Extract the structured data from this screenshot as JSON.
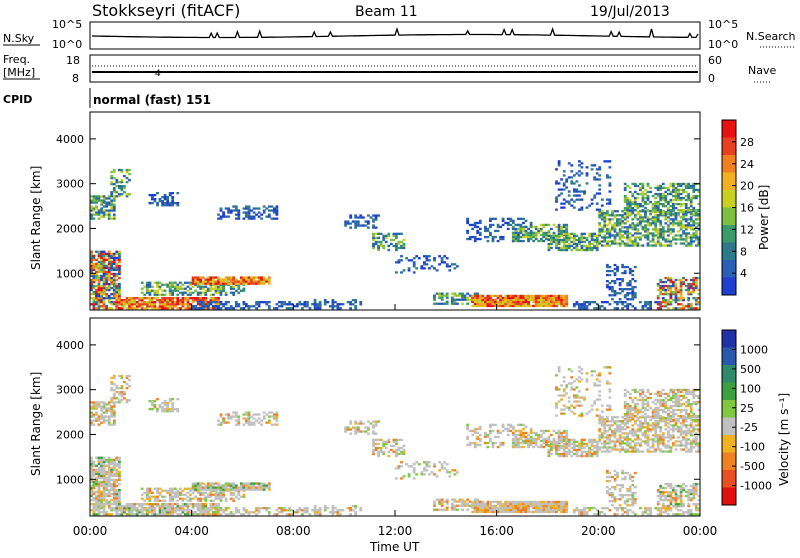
{
  "header": {
    "station": "Stokkseyri (fitACF)",
    "beam": "Beam 11",
    "date": "19/Jul/2013"
  },
  "top_panels": {
    "nsky_label": "N.Sky",
    "nsky_ticks": [
      "10^5",
      "10^0"
    ],
    "nsearch_ticks": [
      "10^5",
      "10^0"
    ],
    "nsearch_label": "N.Search",
    "freq_label_1": "Freq.",
    "freq_label_2": "[MHz]",
    "freq_ticks": [
      "18",
      "8"
    ],
    "nave_ticks": [
      "60",
      "0"
    ],
    "nave_label": "Nave",
    "cpid_label": "CPID",
    "cpid_value": "normal (fast) 151",
    "cpid_marker": "4"
  },
  "chart_data": [
    {
      "type": "heatmap",
      "title": "",
      "ylabel": "Slant Range [km]",
      "ylim": [
        180,
        4600
      ],
      "yticks": [
        "1000",
        "2000",
        "3000",
        "4000"
      ],
      "colorbar": {
        "label": "Power [dB]",
        "ticks": [
          "28",
          "24",
          "20",
          "16",
          "12",
          "8",
          "4"
        ],
        "range": [
          0,
          30
        ],
        "colors": [
          "#1f3fd0",
          "#2a5fb8",
          "#2e7a8c",
          "#3a9a6a",
          "#7dc040",
          "#c8d020",
          "#f0b020",
          "#f08020",
          "#e84020",
          "#e81010"
        ]
      }
    },
    {
      "type": "heatmap",
      "title": "",
      "ylabel": "Slant Range [km]",
      "xlabel": "Time UT",
      "xticks": [
        "00:00",
        "04:00",
        "08:00",
        "12:00",
        "16:00",
        "20:00",
        "00:00"
      ],
      "xlim_hours": [
        0,
        24
      ],
      "ylim": [
        180,
        4600
      ],
      "yticks": [
        "1000",
        "2000",
        "3000",
        "4000"
      ],
      "colorbar": {
        "label": "Velocity [m s⁻¹]",
        "ticks": [
          "1000",
          "500",
          "100",
          "25",
          "-25",
          "-100",
          "-500",
          "-1000"
        ],
        "colors": [
          "#2030a8",
          "#2a58b0",
          "#2e8a6a",
          "#3aa040",
          "#80c840",
          "#c0c0c0",
          "#f0b020",
          "#f08020",
          "#e85020",
          "#e01010"
        ]
      }
    }
  ]
}
